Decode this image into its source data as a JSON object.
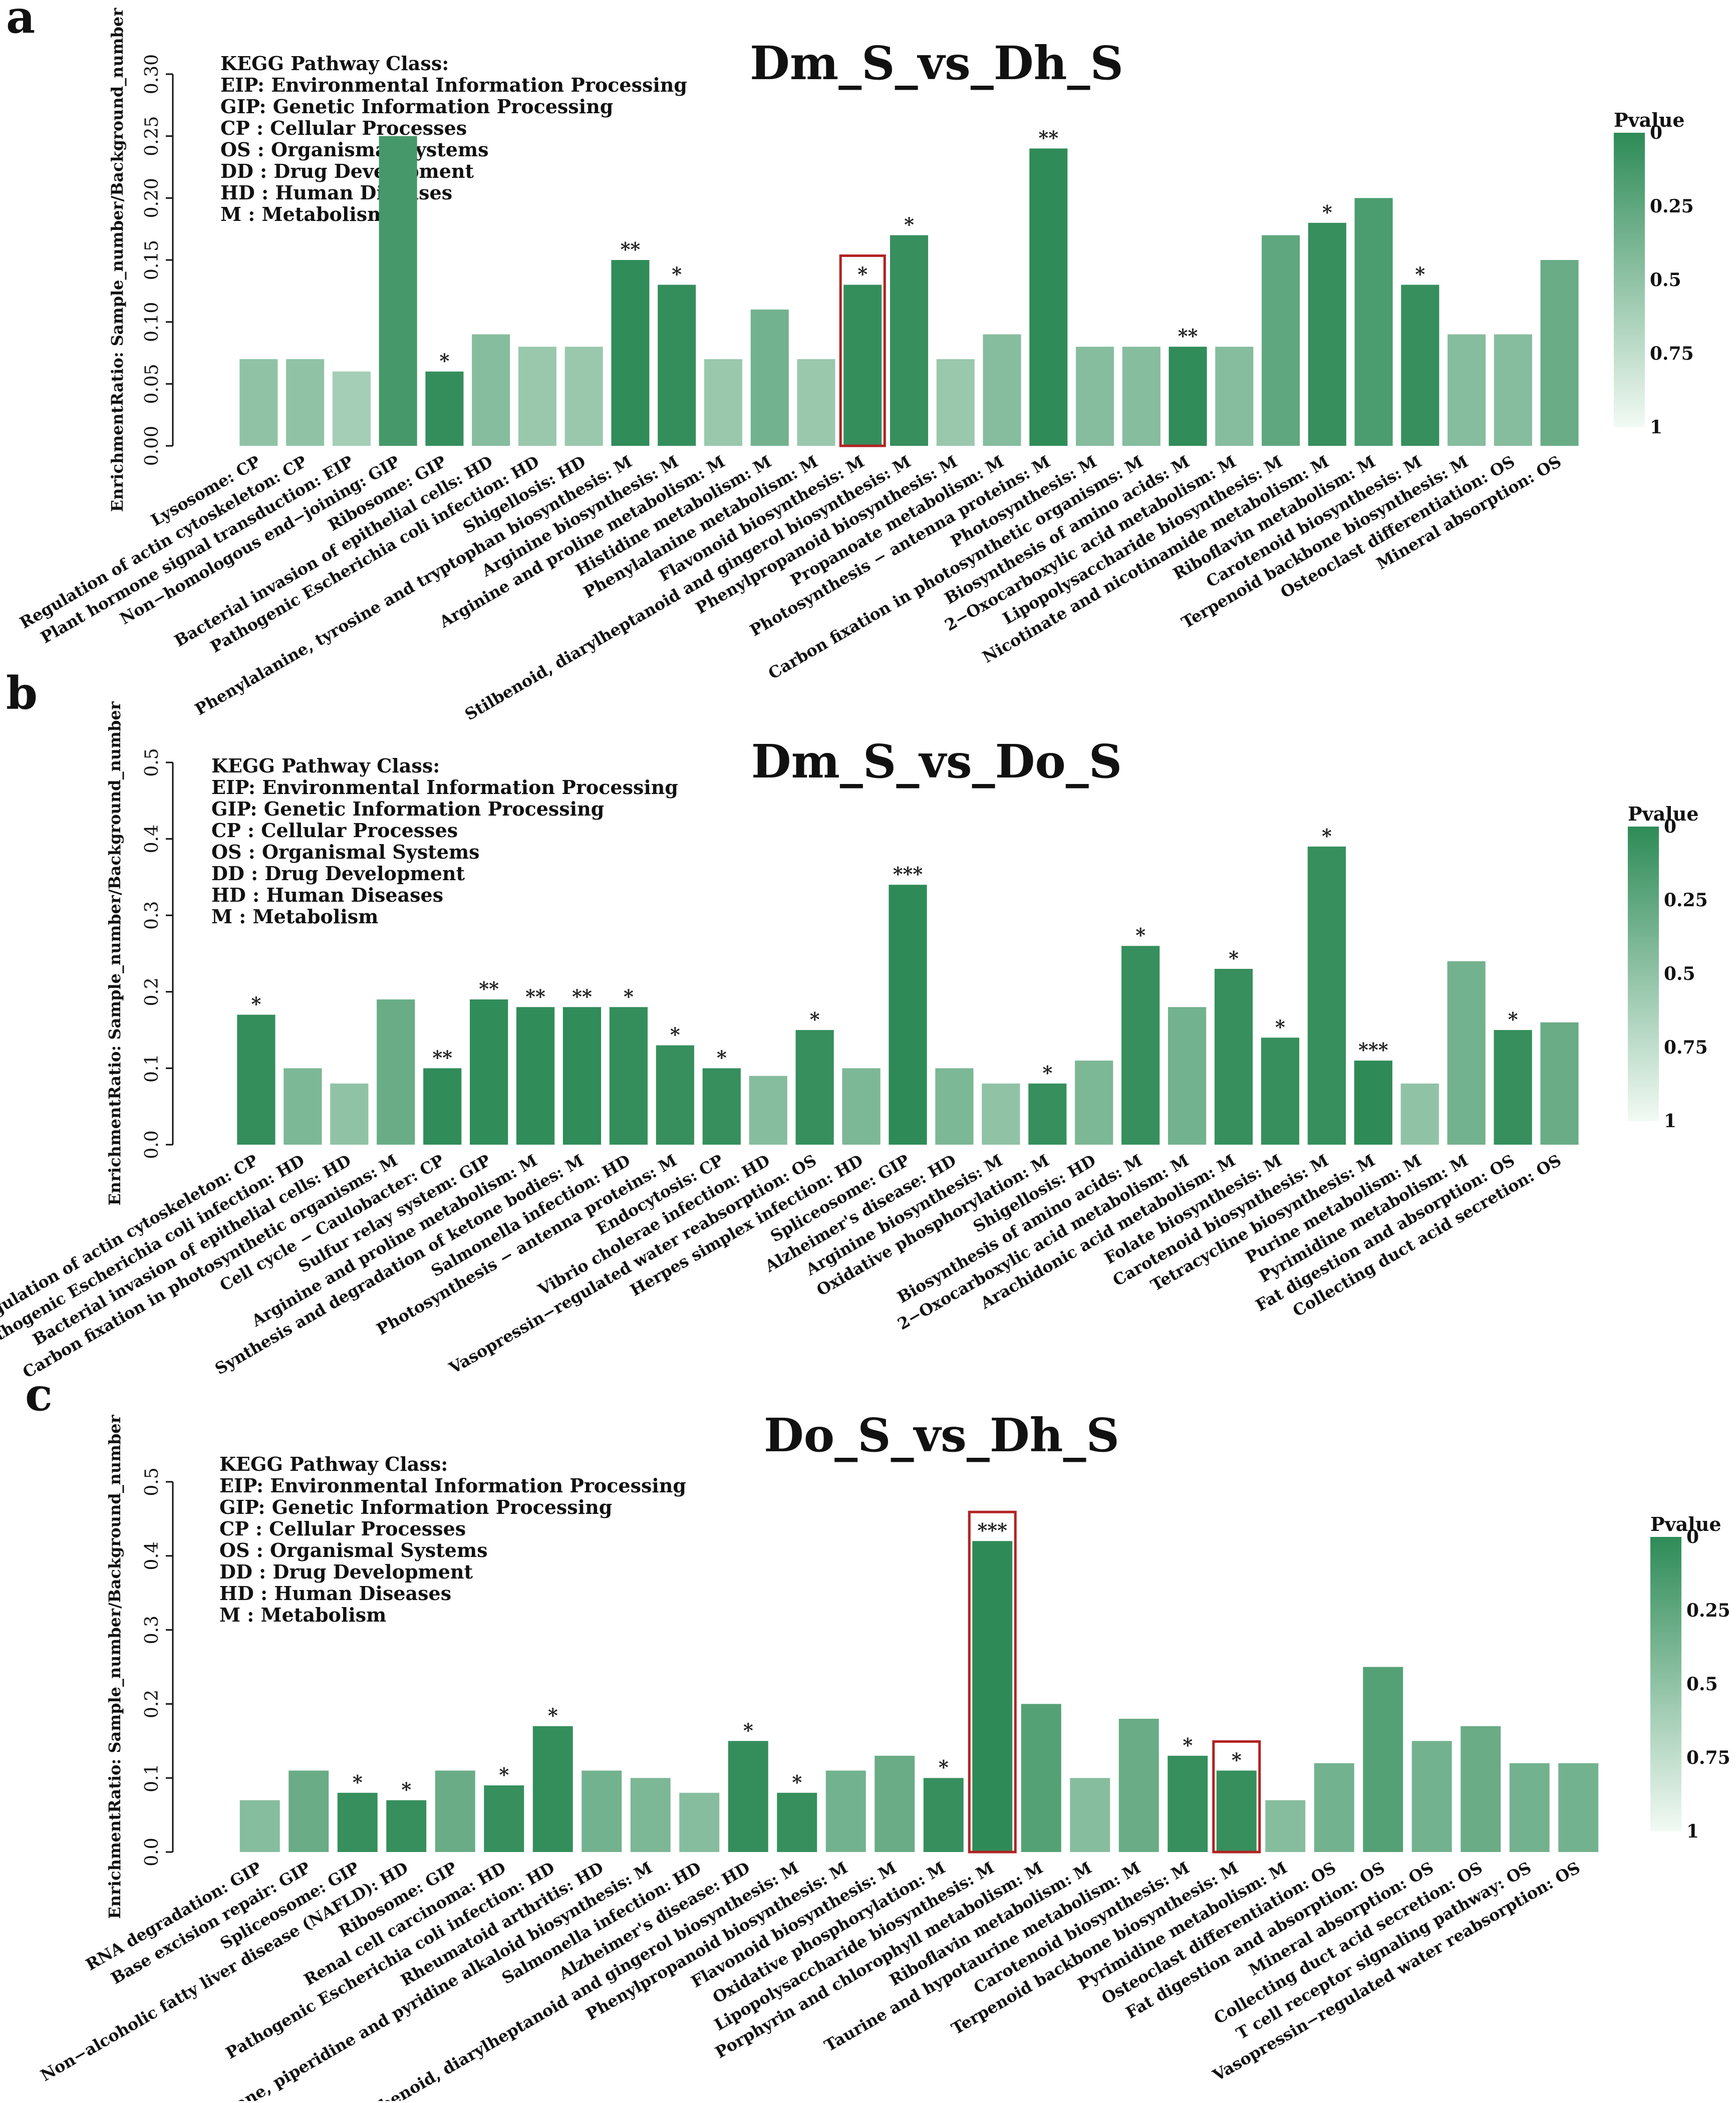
{
  "legend_lines": [
    "KEGG Pathway Class:",
    "EIP: Environmental Information Processing",
    "GIP: Genetic Information Processing",
    "CP : Cellular Processes",
    "OS : Organismal Systems",
    "DD : Drug Development",
    "HD : Human Diseases",
    "M   : Metabolism"
  ],
  "colorbar": {
    "title": "Pvalue",
    "ticks": [
      "0",
      "0.25",
      "0.5",
      "0.75",
      "1"
    ],
    "color_low_p": "#2e8b57",
    "color_high_p": "#f2faf4"
  },
  "highlight_color": "#b22222",
  "chart_data": [
    {
      "panel": "a",
      "type": "bar",
      "title": "Dm_S_vs_Dh_S",
      "ylabel": "EnrichmentRatio: Sample_number/Background_number",
      "ylim": [
        0,
        0.3
      ],
      "yticks": [
        "0.00",
        "0.05",
        "0.10",
        "0.15",
        "0.20",
        "0.25",
        "0.30"
      ],
      "categories": [
        "Lysosome:",
        "Regulation of actin cytoskeleton:",
        "Plant hormone signal transduction:",
        "Non−homologous end−joining:",
        "Ribosome:",
        "Bacterial invasion of epithelial cells:",
        "Pathogenic Escherichia coli infection:",
        "Shigellosis:",
        "Phenylalanine, tyrosine and tryptophan biosynthesis:",
        "Arginine biosynthesis:",
        "Arginine and proline metabolism:",
        "Histidine metabolism:",
        "Phenylalanine metabolism:",
        "Flavonoid biosynthesis:",
        "Stilbenoid, diarylheptanoid and gingerol biosynthesis:",
        "Phenylpropanoid biosynthesis:",
        "Propanoate metabolism:",
        "Photosynthesis − antenna proteins:",
        "Photosynthesis:",
        "Carbon fixation in photosynthetic organisms:",
        "Biosynthesis of amino acids:",
        "2−Oxocarboxylic acid metabolism:",
        "Lipopolysaccharide biosynthesis:",
        "Nicotinate and nicotinamide metabolism:",
        "Riboflavin metabolism:",
        "Carotenoid biosynthesis:",
        "Terpenoid backbone biosynthesis:",
        "Osteoclast differentiation:",
        "Mineral absorption:"
      ],
      "classes": [
        "CP",
        "CP",
        "EIP",
        "GIP",
        "GIP",
        "HD",
        "HD",
        "HD",
        "M",
        "M",
        "M",
        "M",
        "M",
        "M",
        "M",
        "M",
        "M",
        "M",
        "M",
        "M",
        "M",
        "M",
        "M",
        "M",
        "M",
        "M",
        "M",
        "OS",
        "OS"
      ],
      "values": [
        0.07,
        0.07,
        0.06,
        0.25,
        0.06,
        0.09,
        0.08,
        0.08,
        0.15,
        0.13,
        0.07,
        0.11,
        0.07,
        0.13,
        0.17,
        0.07,
        0.09,
        0.24,
        0.08,
        0.08,
        0.08,
        0.08,
        0.17,
        0.18,
        0.2,
        0.13,
        0.09,
        0.09,
        0.15
      ],
      "pvalues": [
        0.5,
        0.5,
        0.6,
        0.12,
        0.03,
        0.45,
        0.55,
        0.55,
        0.01,
        0.03,
        0.55,
        0.35,
        0.55,
        0.03,
        0.04,
        0.55,
        0.45,
        0.005,
        0.45,
        0.45,
        0.01,
        0.45,
        0.25,
        0.04,
        0.15,
        0.04,
        0.45,
        0.45,
        0.3
      ],
      "significance": [
        "",
        "",
        "",
        "",
        "*",
        "",
        "",
        "",
        "**",
        "*",
        "",
        "",
        "",
        "*",
        "*",
        "",
        "",
        "**",
        "",
        "",
        "**",
        "",
        "",
        "*",
        "",
        "*",
        "",
        "",
        ""
      ],
      "highlight": [
        13
      ]
    },
    {
      "panel": "b",
      "type": "bar",
      "title": "Dm_S_vs_Do_S",
      "ylabel": "EnrichmentRatio: Sample_number/Background_number",
      "ylim": [
        0,
        0.5
      ],
      "yticks": [
        "0.0",
        "0.1",
        "0.2",
        "0.3",
        "0.4",
        "0.5"
      ],
      "categories": [
        "Regulation of actin cytoskeleton:",
        "Pathogenic Escherichia coli infection:",
        "Bacterial invasion of epithelial cells:",
        "Carbon fixation in photosynthetic organisms:",
        "Cell cycle − Caulobacter:",
        "Sulfur relay system:",
        "Arginine and proline metabolism:",
        "Synthesis and degradation of ketone bodies:",
        "Salmonella infection:",
        "Photosynthesis − antenna proteins:",
        "Endocytosis:",
        "Vibrio cholerae infection:",
        "Vasopressin−regulated water reabsorption:",
        "Herpes simplex infection:",
        "Spliceosome:",
        "Alzheimer's disease:",
        "Arginine biosynthesis:",
        "Oxidative phosphorylation:",
        "Shigellosis:",
        "Biosynthesis of amino acids:",
        "2−Oxocarboxylic acid metabolism:",
        "Arachidonic acid metabolism:",
        "Folate biosynthesis:",
        "Carotenoid biosynthesis:",
        "Tetracycline biosynthesis:",
        "Purine metabolism:",
        "Pyrimidine metabolism:",
        "Fat digestion and absorption:",
        "Collecting duct acid secretion:"
      ],
      "classes": [
        "CP",
        "HD",
        "HD",
        "M",
        "CP",
        "GIP",
        "M",
        "M",
        "HD",
        "M",
        "CP",
        "HD",
        "OS",
        "HD",
        "GIP",
        "HD",
        "M",
        "M",
        "HD",
        "M",
        "M",
        "M",
        "M",
        "M",
        "M",
        "M",
        "M",
        "OS",
        "OS"
      ],
      "values": [
        0.17,
        0.1,
        0.08,
        0.19,
        0.1,
        0.19,
        0.18,
        0.18,
        0.18,
        0.13,
        0.1,
        0.09,
        0.15,
        0.1,
        0.34,
        0.1,
        0.08,
        0.08,
        0.11,
        0.26,
        0.18,
        0.23,
        0.14,
        0.39,
        0.11,
        0.08,
        0.24,
        0.15,
        0.16
      ],
      "pvalues": [
        0.03,
        0.4,
        0.5,
        0.3,
        0.01,
        0.01,
        0.01,
        0.01,
        0.03,
        0.04,
        0.04,
        0.45,
        0.04,
        0.4,
        0.001,
        0.4,
        0.5,
        0.04,
        0.4,
        0.04,
        0.35,
        0.04,
        0.04,
        0.04,
        0.001,
        0.5,
        0.35,
        0.04,
        0.3
      ],
      "significance": [
        "*",
        "",
        "",
        "",
        "**",
        "**",
        "**",
        "**",
        "*",
        "*",
        "*",
        "",
        "*",
        "",
        "***",
        "",
        "",
        "*",
        "",
        "*",
        "",
        "*",
        "*",
        "*",
        "***",
        "",
        "",
        "*",
        ""
      ],
      "highlight": []
    },
    {
      "panel": "c",
      "type": "bar",
      "title": "Do_S_vs_Dh_S",
      "ylabel": "EnrichmentRatio: Sample_number/Background_number",
      "ylim": [
        0,
        0.5
      ],
      "yticks": [
        "0.0",
        "0.1",
        "0.2",
        "0.3",
        "0.4",
        "0.5"
      ],
      "categories": [
        "RNA degradation:",
        "Base excision repair:",
        "Spliceosome:",
        "Non−alcoholic fatty liver disease (NAFLD):",
        "Ribosome:",
        "Renal cell carcinoma:",
        "Pathogenic Escherichia coli infection:",
        "Rheumatoid arthritis:",
        "Tropane, piperidine and pyridine alkaloid biosynthesis:",
        "Salmonella infection:",
        "Alzheimer's disease:",
        "Stilbenoid, diarylheptanoid and gingerol biosynthesis:",
        "Phenylpropanoid biosynthesis:",
        "Flavonoid biosynthesis:",
        "Oxidative phosphorylation:",
        "Lipopolysaccharide biosynthesis:",
        "Porphyrin and chlorophyll metabolism:",
        "Riboflavin metabolism:",
        "Taurine and hypotaurine metabolism:",
        "Carotenoid biosynthesis:",
        "Terpenoid backbone biosynthesis:",
        "Pyrimidine metabolism:",
        "Osteoclast differentiation:",
        "Fat digestion and absorption:",
        "Mineral absorption:",
        "Collecting duct acid secretion:",
        "T cell receptor signaling pathway:",
        "Vasopressin−regulated water reabsorption:"
      ],
      "classes": [
        "GIP",
        "GIP",
        "GIP",
        "HD",
        "GIP",
        "HD",
        "HD",
        "HD",
        "M",
        "HD",
        "HD",
        "M",
        "M",
        "M",
        "M",
        "M",
        "M",
        "M",
        "M",
        "M",
        "M",
        "M",
        "OS",
        "OS",
        "OS",
        "OS",
        "OS",
        "OS"
      ],
      "values": [
        0.07,
        0.11,
        0.08,
        0.07,
        0.11,
        0.09,
        0.17,
        0.11,
        0.1,
        0.08,
        0.15,
        0.08,
        0.11,
        0.13,
        0.1,
        0.42,
        0.2,
        0.1,
        0.18,
        0.13,
        0.11,
        0.07,
        0.12,
        0.25,
        0.15,
        0.17,
        0.12,
        0.12
      ],
      "pvalues": [
        0.45,
        0.3,
        0.04,
        0.04,
        0.3,
        0.04,
        0.03,
        0.35,
        0.4,
        0.45,
        0.03,
        0.04,
        0.35,
        0.3,
        0.04,
        0.001,
        0.2,
        0.45,
        0.3,
        0.04,
        0.04,
        0.45,
        0.35,
        0.2,
        0.35,
        0.3,
        0.35,
        0.35
      ],
      "significance": [
        "",
        "",
        "*",
        "*",
        "",
        "*",
        "*",
        "",
        "",
        "",
        "*",
        "*",
        "",
        "",
        "*",
        "***",
        "",
        "",
        "",
        "*",
        "*",
        "",
        "",
        "",
        "",
        "",
        "",
        ""
      ],
      "highlight": [
        15,
        20
      ]
    }
  ]
}
